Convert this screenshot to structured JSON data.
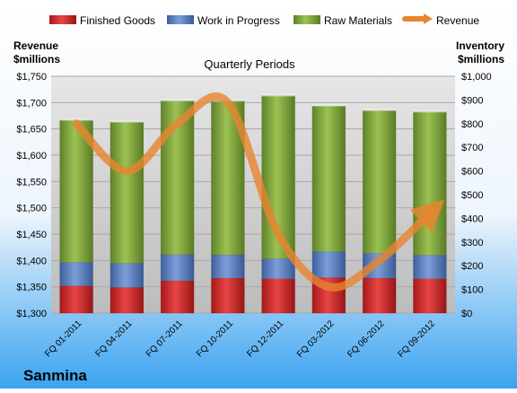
{
  "chart_data": {
    "type": "bar",
    "stacked": true,
    "title": "Quarterly Periods",
    "company": "Sanmina",
    "ylabel_left": [
      "Revenue",
      "$millions"
    ],
    "ylabel_right": [
      "Inventory",
      "$millions"
    ],
    "ylim_left": [
      1300,
      1750
    ],
    "ylim_right": [
      0,
      1000
    ],
    "yticks_left": [
      1300,
      1350,
      1400,
      1450,
      1500,
      1550,
      1600,
      1650,
      1700,
      1750
    ],
    "yticks_right": [
      0,
      100,
      200,
      300,
      400,
      500,
      600,
      700,
      800,
      900,
      1000
    ],
    "ytick_labels_left": [
      "$1,300",
      "$1,350",
      "$1,400",
      "$1,450",
      "$1,500",
      "$1,550",
      "$1,600",
      "$1,650",
      "$1,700",
      "$1,750"
    ],
    "ytick_labels_right": [
      "$0",
      "$100",
      "$200",
      "$300",
      "$400",
      "$500",
      "$600",
      "$700",
      "$800",
      "$900",
      "$1,000"
    ],
    "categories": [
      "FQ 01-2011",
      "FQ 04-2011",
      "FQ 07-2011",
      "FQ 10-2011",
      "FQ 12-2011",
      "FQ 03-2012",
      "FQ 06-2012",
      "FQ 09-2012"
    ],
    "grid": true,
    "legend_position": "top",
    "series": [
      {
        "name": "Finished Goods",
        "axis": "right",
        "values": [
          115,
          108,
          137,
          148,
          145,
          150,
          148,
          145
        ],
        "color": "#cc2a2a"
      },
      {
        "name": "Work in Progress",
        "axis": "right",
        "values": [
          100,
          102,
          110,
          98,
          85,
          110,
          105,
          100
        ],
        "color": "#5b7fbf"
      },
      {
        "name": "Raw Materials",
        "axis": "right",
        "values": [
          600,
          597,
          650,
          650,
          688,
          615,
          603,
          605
        ],
        "color": "#7fa33a"
      },
      {
        "name": "Revenue",
        "axis": "left",
        "type": "line",
        "values": [
          1660,
          1570,
          1660,
          1700,
          1450,
          1350,
          1400,
          1490
        ],
        "color": "#e8852f"
      }
    ]
  }
}
